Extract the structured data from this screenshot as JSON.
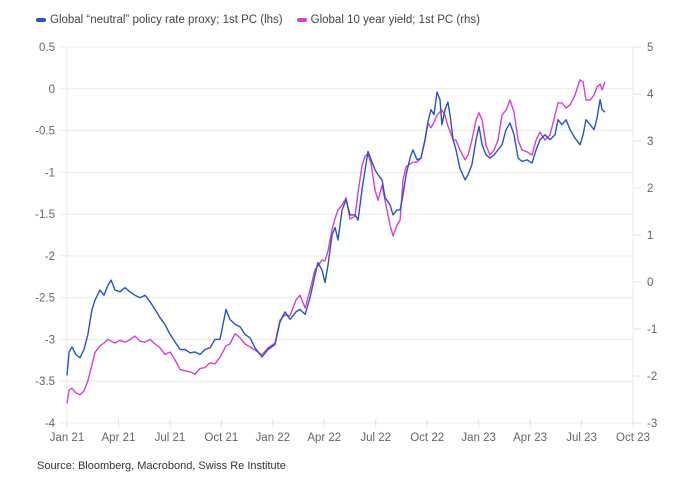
{
  "chart_data": {
    "type": "line",
    "title": "",
    "source": "Source: Bloomberg, Macrobond, Swiss Re Institute",
    "x_unit": "months since Jan 21",
    "x_ticks": [
      {
        "label": "Jan 21",
        "m": 0
      },
      {
        "label": "Apr 21",
        "m": 3
      },
      {
        "label": "Jul 21",
        "m": 6
      },
      {
        "label": "Oct 21",
        "m": 9
      },
      {
        "label": "Jan 22",
        "m": 12
      },
      {
        "label": "Apr 22",
        "m": 15
      },
      {
        "label": "Jul 22",
        "m": 18
      },
      {
        "label": "Oct 22",
        "m": 21
      },
      {
        "label": "Jan 23",
        "m": 24
      },
      {
        "label": "Apr 23",
        "m": 27
      },
      {
        "label": "Jul 23",
        "m": 30
      },
      {
        "label": "Oct 23",
        "m": 33
      }
    ],
    "xlim": [
      0,
      33
    ],
    "y_left": {
      "label": "lhs",
      "ylim": [
        -4,
        0.5
      ],
      "ticks": [
        "0.5",
        "0",
        "-0.5",
        "-1",
        "-1.5",
        "-2",
        "-2.5",
        "-3",
        "-3.5",
        "-4"
      ],
      "tick_values": [
        0.5,
        0,
        -0.5,
        -1,
        -1.5,
        -2,
        -2.5,
        -3,
        -3.5,
        -4
      ]
    },
    "y_right": {
      "label": "rhs",
      "ylim": [
        -3,
        5
      ],
      "ticks": [
        "5",
        "4",
        "3",
        "2",
        "1",
        "0",
        "-1",
        "-2",
        "-3"
      ],
      "tick_values": [
        5,
        4,
        3,
        2,
        1,
        0,
        -1,
        -2,
        -3
      ]
    },
    "grid": true,
    "legend_position": "top-left",
    "series": [
      {
        "name": "Global “neutral” policy rate proxy; 1st PC (lhs)",
        "axis": "left",
        "color": "#2456c4",
        "points": [
          [
            0.0,
            -3.43
          ],
          [
            0.12,
            -3.15
          ],
          [
            0.29,
            -3.09
          ],
          [
            0.52,
            -3.18
          ],
          [
            0.76,
            -3.22
          ],
          [
            0.99,
            -3.12
          ],
          [
            1.22,
            -2.94
          ],
          [
            1.46,
            -2.64
          ],
          [
            1.63,
            -2.53
          ],
          [
            1.92,
            -2.41
          ],
          [
            2.16,
            -2.47
          ],
          [
            2.39,
            -2.35
          ],
          [
            2.57,
            -2.29
          ],
          [
            2.8,
            -2.41
          ],
          [
            3.09,
            -2.43
          ],
          [
            3.38,
            -2.38
          ],
          [
            3.67,
            -2.43
          ],
          [
            3.96,
            -2.47
          ],
          [
            4.26,
            -2.5
          ],
          [
            4.55,
            -2.47
          ],
          [
            4.84,
            -2.55
          ],
          [
            5.13,
            -2.64
          ],
          [
            5.42,
            -2.74
          ],
          [
            5.71,
            -2.82
          ],
          [
            6.01,
            -2.94
          ],
          [
            6.3,
            -3.03
          ],
          [
            6.59,
            -3.12
          ],
          [
            6.88,
            -3.12
          ],
          [
            7.17,
            -3.16
          ],
          [
            7.46,
            -3.15
          ],
          [
            7.76,
            -3.18
          ],
          [
            8.05,
            -3.12
          ],
          [
            8.34,
            -3.1
          ],
          [
            8.63,
            -3.0
          ],
          [
            8.92,
            -3.0
          ],
          [
            9.27,
            -2.64
          ],
          [
            9.5,
            -2.76
          ],
          [
            9.8,
            -2.82
          ],
          [
            10.09,
            -2.85
          ],
          [
            10.38,
            -2.94
          ],
          [
            10.67,
            -2.98
          ],
          [
            10.96,
            -3.1
          ],
          [
            11.37,
            -3.21
          ],
          [
            11.72,
            -3.12
          ],
          [
            12.13,
            -3.06
          ],
          [
            12.42,
            -2.79
          ],
          [
            12.71,
            -2.67
          ],
          [
            13.0,
            -2.76
          ],
          [
            13.35,
            -2.67
          ],
          [
            13.58,
            -2.64
          ],
          [
            13.88,
            -2.7
          ],
          [
            14.17,
            -2.5
          ],
          [
            14.46,
            -2.23
          ],
          [
            14.63,
            -2.08
          ],
          [
            14.87,
            -2.17
          ],
          [
            15.04,
            -2.32
          ],
          [
            15.22,
            -2.11
          ],
          [
            15.45,
            -1.75
          ],
          [
            15.63,
            -1.66
          ],
          [
            15.8,
            -1.81
          ],
          [
            16.04,
            -1.45
          ],
          [
            16.27,
            -1.33
          ],
          [
            16.5,
            -1.51
          ],
          [
            16.79,
            -1.51
          ],
          [
            16.97,
            -1.57
          ],
          [
            17.2,
            -1.21
          ],
          [
            17.38,
            -0.97
          ],
          [
            17.55,
            -0.75
          ],
          [
            17.73,
            -0.85
          ],
          [
            17.96,
            -0.97
          ],
          [
            18.13,
            -1.03
          ],
          [
            18.37,
            -1.09
          ],
          [
            18.54,
            -1.3
          ],
          [
            18.83,
            -1.39
          ],
          [
            19.01,
            -1.51
          ],
          [
            19.24,
            -1.45
          ],
          [
            19.42,
            -1.45
          ],
          [
            19.59,
            -1.27
          ],
          [
            19.77,
            -1.03
          ],
          [
            20.0,
            -0.83
          ],
          [
            20.17,
            -0.73
          ],
          [
            20.41,
            -0.85
          ],
          [
            20.64,
            -0.83
          ],
          [
            20.87,
            -0.61
          ],
          [
            21.05,
            -0.39
          ],
          [
            21.22,
            -0.25
          ],
          [
            21.4,
            -0.31
          ],
          [
            21.57,
            -0.04
          ],
          [
            21.75,
            -0.13
          ],
          [
            21.86,
            -0.43
          ],
          [
            22.04,
            -0.25
          ],
          [
            22.21,
            -0.16
          ],
          [
            22.33,
            -0.31
          ],
          [
            22.51,
            -0.61
          ],
          [
            22.68,
            -0.73
          ],
          [
            22.91,
            -0.95
          ],
          [
            23.21,
            -1.09
          ],
          [
            23.38,
            -1.03
          ],
          [
            23.61,
            -0.91
          ],
          [
            23.85,
            -0.61
          ],
          [
            24.02,
            -0.45
          ],
          [
            24.2,
            -0.67
          ],
          [
            24.43,
            -0.79
          ],
          [
            24.66,
            -0.83
          ],
          [
            24.9,
            -0.79
          ],
          [
            25.13,
            -0.73
          ],
          [
            25.36,
            -0.67
          ],
          [
            25.6,
            -0.49
          ],
          [
            25.83,
            -0.41
          ],
          [
            26.06,
            -0.55
          ],
          [
            26.3,
            -0.83
          ],
          [
            26.53,
            -0.87
          ],
          [
            26.82,
            -0.85
          ],
          [
            27.11,
            -0.89
          ],
          [
            27.35,
            -0.73
          ],
          [
            27.58,
            -0.61
          ],
          [
            27.87,
            -0.55
          ],
          [
            28.16,
            -0.61
          ],
          [
            28.45,
            -0.55
          ],
          [
            28.63,
            -0.37
          ],
          [
            28.86,
            -0.43
          ],
          [
            29.1,
            -0.37
          ],
          [
            29.33,
            -0.49
          ],
          [
            29.62,
            -0.59
          ],
          [
            29.91,
            -0.67
          ],
          [
            30.09,
            -0.55
          ],
          [
            30.26,
            -0.37
          ],
          [
            30.5,
            -0.43
          ],
          [
            30.73,
            -0.49
          ],
          [
            30.9,
            -0.35
          ],
          [
            31.08,
            -0.13
          ],
          [
            31.2,
            -0.25
          ],
          [
            31.37,
            -0.28
          ]
        ]
      },
      {
        "name": "Global 10 year yield; 1st PC (rhs)",
        "axis": "right",
        "color": "#d63fd6",
        "points": [
          [
            0.0,
            -2.58
          ],
          [
            0.12,
            -2.3
          ],
          [
            0.29,
            -2.26
          ],
          [
            0.52,
            -2.36
          ],
          [
            0.76,
            -2.4
          ],
          [
            0.99,
            -2.32
          ],
          [
            1.22,
            -2.1
          ],
          [
            1.46,
            -1.76
          ],
          [
            1.63,
            -1.5
          ],
          [
            1.92,
            -1.36
          ],
          [
            2.16,
            -1.3
          ],
          [
            2.39,
            -1.22
          ],
          [
            2.57,
            -1.26
          ],
          [
            2.8,
            -1.3
          ],
          [
            3.09,
            -1.24
          ],
          [
            3.38,
            -1.28
          ],
          [
            3.67,
            -1.23
          ],
          [
            3.96,
            -1.15
          ],
          [
            4.26,
            -1.26
          ],
          [
            4.55,
            -1.28
          ],
          [
            4.84,
            -1.22
          ],
          [
            5.13,
            -1.32
          ],
          [
            5.42,
            -1.4
          ],
          [
            5.71,
            -1.54
          ],
          [
            6.01,
            -1.49
          ],
          [
            6.3,
            -1.66
          ],
          [
            6.59,
            -1.86
          ],
          [
            6.88,
            -1.89
          ],
          [
            7.17,
            -1.91
          ],
          [
            7.46,
            -1.96
          ],
          [
            7.76,
            -1.84
          ],
          [
            8.05,
            -1.82
          ],
          [
            8.34,
            -1.72
          ],
          [
            8.63,
            -1.74
          ],
          [
            8.92,
            -1.6
          ],
          [
            9.27,
            -1.36
          ],
          [
            9.5,
            -1.32
          ],
          [
            9.8,
            -1.1
          ],
          [
            10.09,
            -1.19
          ],
          [
            10.38,
            -1.32
          ],
          [
            10.67,
            -1.38
          ],
          [
            10.96,
            -1.45
          ],
          [
            11.37,
            -1.55
          ],
          [
            11.72,
            -1.4
          ],
          [
            12.13,
            -1.3
          ],
          [
            12.42,
            -0.81
          ],
          [
            12.71,
            -0.7
          ],
          [
            13.0,
            -0.72
          ],
          [
            13.35,
            -0.38
          ],
          [
            13.58,
            -0.28
          ],
          [
            13.88,
            -0.55
          ],
          [
            14.17,
            -0.17
          ],
          [
            14.46,
            0.26
          ],
          [
            14.63,
            0.34
          ],
          [
            14.87,
            0.47
          ],
          [
            15.04,
            0.45
          ],
          [
            15.22,
            0.66
          ],
          [
            15.45,
            1.11
          ],
          [
            15.63,
            1.36
          ],
          [
            15.8,
            1.53
          ],
          [
            16.04,
            1.64
          ],
          [
            16.27,
            1.79
          ],
          [
            16.5,
            1.34
          ],
          [
            16.79,
            1.4
          ],
          [
            16.97,
            1.92
          ],
          [
            17.2,
            2.47
          ],
          [
            17.38,
            2.68
          ],
          [
            17.55,
            2.73
          ],
          [
            17.73,
            2.51
          ],
          [
            17.96,
            1.96
          ],
          [
            18.13,
            1.74
          ],
          [
            18.37,
            2.06
          ],
          [
            18.54,
            1.74
          ],
          [
            18.83,
            1.21
          ],
          [
            19.01,
            0.98
          ],
          [
            19.24,
            1.21
          ],
          [
            19.42,
            1.32
          ],
          [
            19.59,
            2.17
          ],
          [
            19.77,
            2.45
          ],
          [
            20.0,
            2.51
          ],
          [
            20.17,
            2.55
          ],
          [
            20.41,
            2.55
          ],
          [
            20.64,
            2.64
          ],
          [
            20.87,
            3.02
          ],
          [
            21.05,
            3.38
          ],
          [
            21.22,
            3.28
          ],
          [
            21.4,
            3.4
          ],
          [
            21.57,
            3.55
          ],
          [
            21.75,
            3.62
          ],
          [
            21.86,
            3.66
          ],
          [
            22.04,
            3.55
          ],
          [
            22.21,
            3.32
          ],
          [
            22.33,
            3.21
          ],
          [
            22.51,
            3.02
          ],
          [
            22.68,
            3.02
          ],
          [
            22.91,
            2.81
          ],
          [
            23.21,
            2.6
          ],
          [
            23.38,
            2.7
          ],
          [
            23.61,
            3.02
          ],
          [
            23.85,
            3.45
          ],
          [
            24.02,
            3.6
          ],
          [
            24.2,
            3.45
          ],
          [
            24.43,
            2.91
          ],
          [
            24.66,
            2.7
          ],
          [
            24.9,
            2.81
          ],
          [
            25.13,
            3.02
          ],
          [
            25.36,
            3.55
          ],
          [
            25.6,
            3.66
          ],
          [
            25.83,
            3.87
          ],
          [
            26.06,
            3.62
          ],
          [
            26.3,
            3.02
          ],
          [
            26.53,
            2.81
          ],
          [
            26.82,
            2.77
          ],
          [
            27.11,
            2.7
          ],
          [
            27.35,
            3.02
          ],
          [
            27.58,
            3.19
          ],
          [
            27.87,
            3.02
          ],
          [
            28.16,
            3.13
          ],
          [
            28.45,
            3.55
          ],
          [
            28.63,
            3.81
          ],
          [
            28.86,
            3.81
          ],
          [
            29.1,
            3.7
          ],
          [
            29.33,
            3.77
          ],
          [
            29.62,
            3.98
          ],
          [
            29.91,
            4.3
          ],
          [
            30.09,
            4.26
          ],
          [
            30.26,
            3.87
          ],
          [
            30.5,
            3.87
          ],
          [
            30.73,
            3.98
          ],
          [
            30.9,
            4.15
          ],
          [
            31.08,
            4.21
          ],
          [
            31.2,
            4.09
          ],
          [
            31.37,
            4.26
          ]
        ]
      }
    ]
  }
}
